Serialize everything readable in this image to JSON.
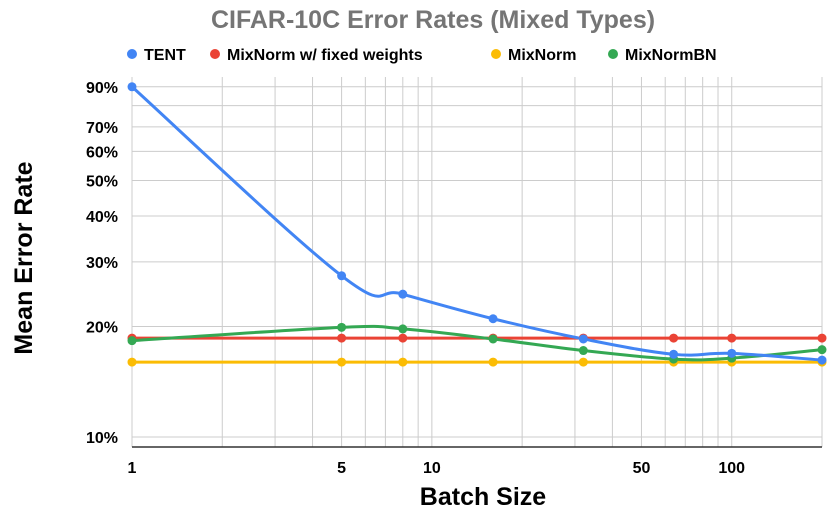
{
  "chart_data": {
    "type": "line",
    "title": "CIFAR-10C Error Rates (Mixed Types)",
    "xlabel": "Batch Size",
    "ylabel": "Mean Error Rate",
    "xscale": "log",
    "yscale": "log",
    "xlim": [
      1,
      200
    ],
    "ylim": [
      10,
      100
    ],
    "x_ticks": [
      1,
      5,
      10,
      50,
      100
    ],
    "x_tick_labels": [
      "1",
      "5",
      "10",
      "50",
      "100"
    ],
    "y_ticks": [
      10,
      20,
      30,
      40,
      50,
      60,
      70,
      90
    ],
    "y_tick_labels": [
      "10%",
      "20%",
      "30%",
      "40%",
      "50%",
      "60%",
      "70%",
      "90%"
    ],
    "y_grid": [
      10,
      20,
      30,
      40,
      50,
      60,
      70,
      80,
      90
    ],
    "x_grid": [
      1,
      2,
      3,
      4,
      5,
      6,
      7,
      8,
      9,
      10,
      20,
      30,
      40,
      50,
      60,
      70,
      80,
      90,
      100,
      200
    ],
    "legend_position": "top",
    "x": [
      1,
      5,
      8,
      16,
      32,
      64,
      100,
      200
    ],
    "series": [
      {
        "name": "TENT",
        "color": "#4285F4",
        "values": [
          90,
          27.5,
          24.5,
          21,
          18.5,
          16.8,
          16.9,
          16.2
        ]
      },
      {
        "name": "MixNorm w/ fixed weights",
        "color": "#EA4335",
        "values": [
          18.6,
          18.6,
          18.6,
          18.6,
          18.6,
          18.6,
          18.6,
          18.6
        ]
      },
      {
        "name": "MixNorm",
        "color": "#FBBC04",
        "values": [
          16,
          16,
          16,
          16,
          16,
          16,
          16,
          16
        ]
      },
      {
        "name": "MixNormBN",
        "color": "#34A853",
        "values": [
          18.3,
          19.9,
          19.7,
          18.5,
          17.2,
          16.3,
          16.4,
          17.3
        ]
      }
    ]
  }
}
